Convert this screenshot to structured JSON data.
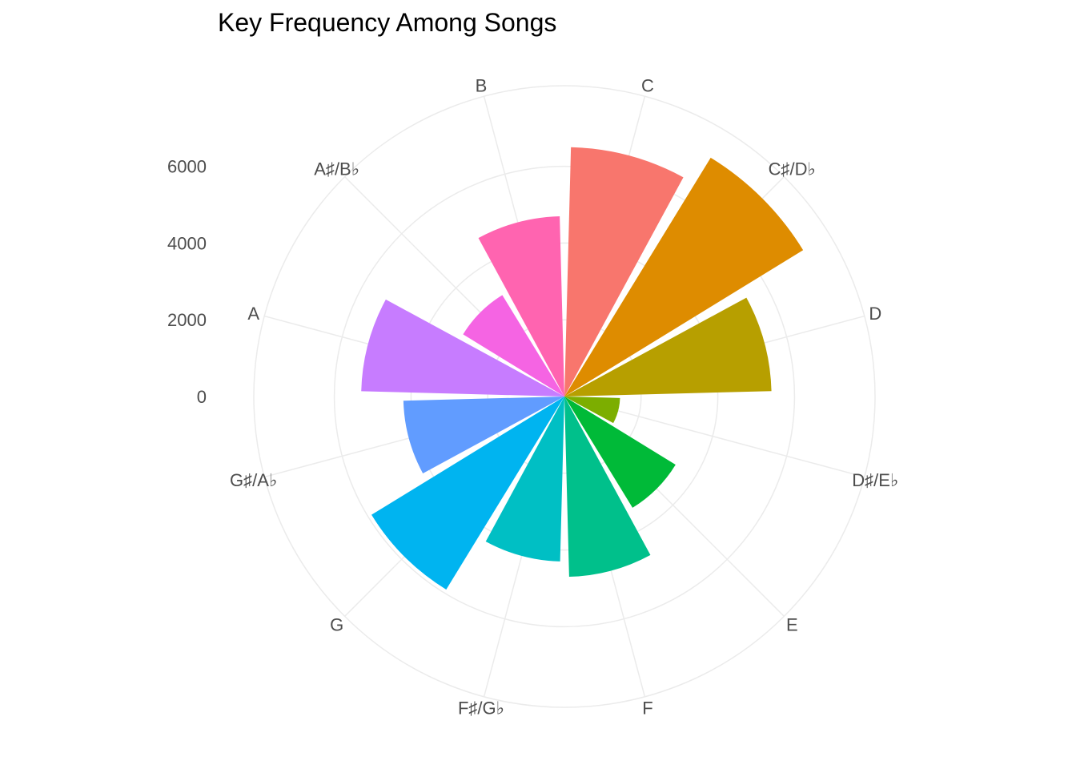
{
  "chart_data": {
    "type": "bar",
    "coord": "polar",
    "title": "Key Frequency Among Songs",
    "xlabel": "",
    "ylabel": "",
    "categories": [
      "C",
      "C♯/D♭",
      "D",
      "D♯/E♭",
      "E",
      "F",
      "F♯/G♭",
      "G",
      "G♯/A♭",
      "A",
      "A♯/B♭",
      "B"
    ],
    "values": [
      6500,
      7300,
      5400,
      1450,
      3400,
      4700,
      4300,
      5900,
      4200,
      5300,
      3100,
      4700
    ],
    "colors": [
      "#F8766D",
      "#DE8C00",
      "#B79F00",
      "#7CAE00",
      "#00BA38",
      "#00C08B",
      "#00BFC4",
      "#00B4F0",
      "#619CFF",
      "#C77CFF",
      "#F564E3",
      "#FF64B0"
    ],
    "y_ticks": [
      0,
      2000,
      4000,
      6000
    ],
    "y_tick_labels": [
      "0",
      "2000",
      "4000",
      "6000"
    ],
    "ylim": [
      0,
      8100
    ],
    "grid": true,
    "legend": "none"
  }
}
